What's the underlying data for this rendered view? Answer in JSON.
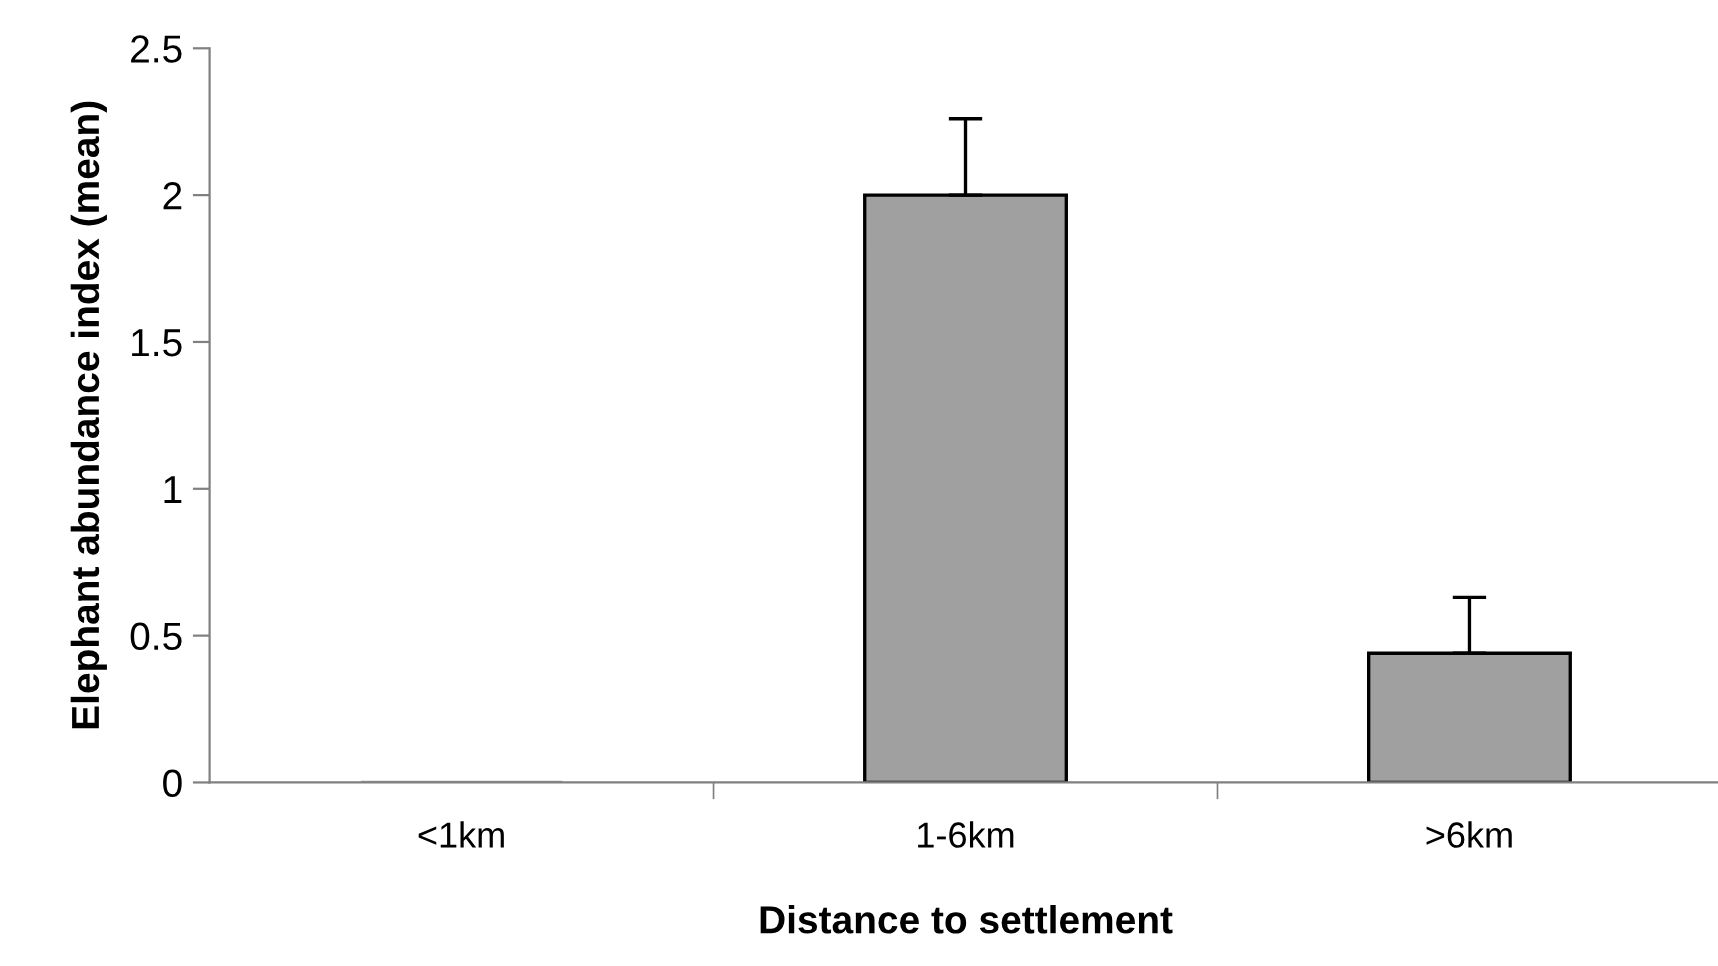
{
  "chart_data": {
    "type": "bar",
    "xlabel": "Distance to settlement",
    "ylabel": "Elephant abundance index (mean)",
    "categories": [
      "<1km",
      "1-6km",
      ">6km"
    ],
    "values": [
      0,
      2.0,
      0.44
    ],
    "errors": [
      null,
      [
        2.0,
        2.26
      ],
      [
        0.44,
        0.63
      ]
    ],
    "color": "#a0a0a0",
    "ylim": [
      0,
      2.5
    ],
    "yticks": [
      0,
      0.5,
      1,
      1.5,
      2,
      2.5
    ],
    "grid": false,
    "legend": false
  }
}
